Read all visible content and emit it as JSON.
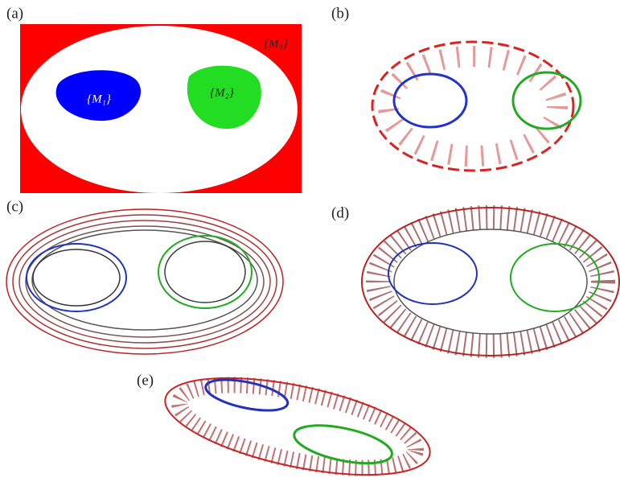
{
  "panels": [
    {
      "label": "(a)"
    },
    {
      "label": "(b)"
    },
    {
      "label": "(c)"
    },
    {
      "label": "(d)"
    },
    {
      "label": "(e)"
    }
  ],
  "regions": [
    {
      "label": "{M₁}"
    },
    {
      "label": "{M₂}"
    },
    {
      "label": "{M₃}"
    }
  ]
}
